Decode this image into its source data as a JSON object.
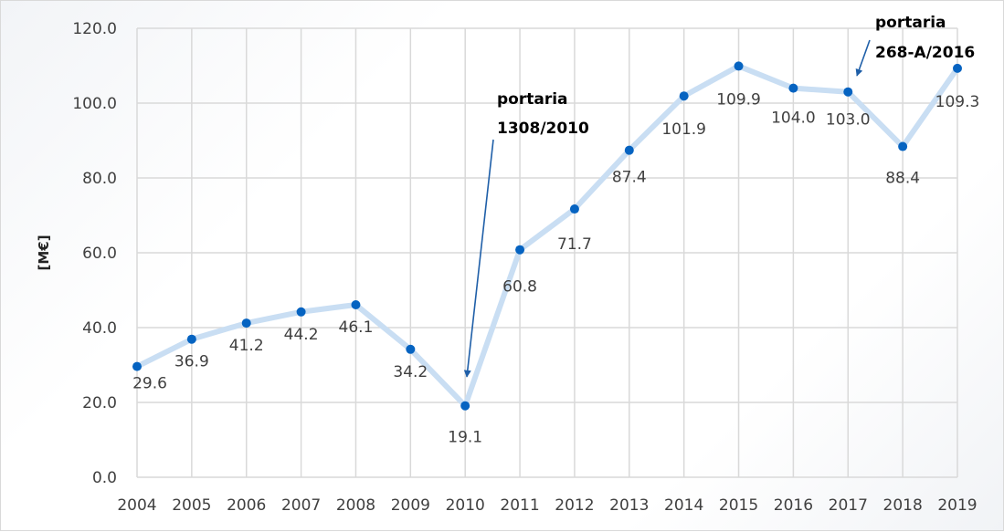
{
  "chart_data": {
    "type": "line",
    "title": "",
    "xlabel": "",
    "ylabel": "[M€]",
    "ylim": [
      0,
      120
    ],
    "yticks": [
      "0.0",
      "20.0",
      "40.0",
      "60.0",
      "80.0",
      "100.0",
      "120.0"
    ],
    "grid": true,
    "legend": null,
    "categories": [
      "2004",
      "2005",
      "2006",
      "2007",
      "2008",
      "2009",
      "2010",
      "2011",
      "2012",
      "2013",
      "2014",
      "2015",
      "2016",
      "2017",
      "2018",
      "2019"
    ],
    "series": [
      {
        "name": "value",
        "values": [
          29.6,
          36.9,
          41.2,
          44.2,
          46.1,
          34.2,
          19.1,
          60.8,
          71.7,
          87.4,
          101.9,
          109.9,
          104.0,
          103.0,
          88.4,
          109.3
        ]
      }
    ],
    "data_labels": [
      "29.6",
      "36.9",
      "41.2",
      "44.2",
      "46.1",
      "34.2",
      "19.1",
      "60.8",
      "71.7",
      "87.4",
      "101.9",
      "109.9",
      "104.0",
      "103.0",
      "88.4",
      "109.3"
    ],
    "annotations": [
      {
        "lines": [
          "portaria",
          "1308/2010"
        ],
        "points_to": "2010"
      },
      {
        "lines": [
          "portaria",
          "268-A/2016"
        ],
        "points_to": "2017"
      }
    ],
    "colors": {
      "line": "#c9def3",
      "marker": "#0563c1",
      "arrow": "#1f5fa8",
      "grid": "#d9d9d9"
    }
  }
}
